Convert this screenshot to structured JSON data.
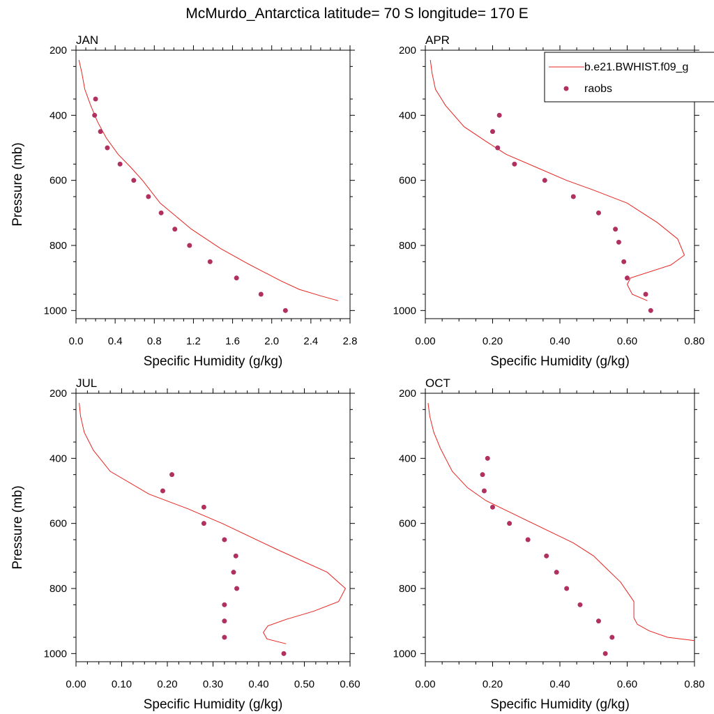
{
  "title": "McMurdo_Antarctica  latitude= 70 S longitude= 170 E",
  "colors": {
    "model": "#e8231f",
    "obs": "#b03060",
    "axis": "#000000"
  },
  "legend": {
    "model_label": "b.e21.BWHIST.f09_g",
    "obs_label": "raobs",
    "placement": "top-right of APR panel"
  },
  "chart_data": [
    {
      "type": "line",
      "panel_title": "JAN",
      "xlabel": "Specific Humidity (g/kg)",
      "ylabel": "Pressure (mb)",
      "xlim": [
        0,
        2.8
      ],
      "xticks": [
        "0.0",
        "0.4",
        "0.8",
        "1.2",
        "1.6",
        "2.0",
        "2.4",
        "2.8"
      ],
      "ylim": [
        200,
        1025
      ],
      "yticks": [
        "200",
        "400",
        "600",
        "800",
        "1000"
      ],
      "series": [
        {
          "kind": "line",
          "x": [
            0.03,
            0.06,
            0.09,
            0.15,
            0.22,
            0.31,
            0.43,
            0.56,
            0.68,
            0.86,
            1.18,
            1.48,
            1.78,
            2.1,
            2.28,
            2.5,
            2.68
          ],
          "y": [
            230,
            270,
            320,
            370,
            420,
            470,
            520,
            560,
            600,
            670,
            750,
            810,
            860,
            910,
            935,
            955,
            970
          ]
        },
        {
          "kind": "scatter",
          "x": [
            0.2,
            0.19,
            0.25,
            0.32,
            0.45,
            0.59,
            0.74,
            0.87,
            1.01,
            1.16,
            1.37,
            1.64,
            1.89,
            2.14
          ],
          "y": [
            350,
            400,
            450,
            500,
            550,
            600,
            650,
            700,
            750,
            800,
            850,
            900,
            950,
            1000
          ]
        }
      ]
    },
    {
      "type": "line",
      "panel_title": "APR",
      "xlabel": "Specific Humidity (g/kg)",
      "ylabel": "",
      "xlim": [
        0,
        0.8
      ],
      "xticks": [
        "0.00",
        "0.20",
        "0.40",
        "0.60",
        "0.80"
      ],
      "ylim": [
        200,
        1025
      ],
      "yticks": [
        "200",
        "400",
        "600",
        "800",
        "1000"
      ],
      "series": [
        {
          "kind": "line",
          "x": [
            0.015,
            0.02,
            0.03,
            0.06,
            0.115,
            0.18,
            0.24,
            0.33,
            0.42,
            0.5,
            0.6,
            0.69,
            0.75,
            0.77,
            0.73,
            0.61,
            0.6,
            0.615,
            0.66
          ],
          "y": [
            230,
            270,
            320,
            370,
            435,
            480,
            520,
            560,
            600,
            630,
            670,
            730,
            780,
            830,
            860,
            900,
            920,
            950,
            970
          ]
        },
        {
          "kind": "scatter",
          "x": [
            0.22,
            0.2,
            0.215,
            0.265,
            0.355,
            0.44,
            0.515,
            0.565,
            0.575,
            0.59,
            0.6,
            0.655,
            0.67
          ],
          "y": [
            400,
            450,
            500,
            550,
            600,
            650,
            700,
            750,
            790,
            850,
            900,
            950,
            1000
          ]
        }
      ]
    },
    {
      "type": "line",
      "panel_title": "JUL",
      "xlabel": "Specific Humidity (g/kg)",
      "ylabel": "Pressure (mb)",
      "xlim": [
        0,
        0.6
      ],
      "xticks": [
        "0.00",
        "0.10",
        "0.20",
        "0.30",
        "0.40",
        "0.50",
        "0.60"
      ],
      "ylim": [
        200,
        1025
      ],
      "yticks": [
        "200",
        "400",
        "600",
        "800",
        "1000"
      ],
      "series": [
        {
          "kind": "line",
          "x": [
            0.007,
            0.01,
            0.018,
            0.038,
            0.075,
            0.16,
            0.245,
            0.32,
            0.44,
            0.55,
            0.59,
            0.575,
            0.52,
            0.46,
            0.42,
            0.41,
            0.418,
            0.46
          ],
          "y": [
            230,
            270,
            320,
            375,
            440,
            510,
            555,
            600,
            680,
            750,
            800,
            840,
            870,
            895,
            915,
            935,
            955,
            970
          ]
        },
        {
          "kind": "scatter",
          "x": [
            0.21,
            0.19,
            0.28,
            0.28,
            0.325,
            0.35,
            0.345,
            0.352,
            0.325,
            0.325,
            0.325,
            0.455
          ],
          "y": [
            450,
            500,
            550,
            600,
            650,
            700,
            750,
            800,
            850,
            900,
            950,
            1000
          ]
        }
      ]
    },
    {
      "type": "line",
      "panel_title": "OCT",
      "xlabel": "Specific Humidity (g/kg)",
      "ylabel": "",
      "xlim": [
        0,
        0.8
      ],
      "xticks": [
        "0.00",
        "0.20",
        "0.40",
        "0.60",
        "0.80"
      ],
      "ylim": [
        200,
        1025
      ],
      "yticks": [
        "200",
        "400",
        "600",
        "800",
        "1000"
      ],
      "series": [
        {
          "kind": "line",
          "x": [
            0.008,
            0.013,
            0.025,
            0.045,
            0.08,
            0.125,
            0.18,
            0.26,
            0.32,
            0.38,
            0.44,
            0.5,
            0.54,
            0.58,
            0.6,
            0.62,
            0.62,
            0.63,
            0.665,
            0.72,
            0.8
          ],
          "y": [
            230,
            270,
            320,
            370,
            440,
            490,
            530,
            570,
            600,
            630,
            660,
            700,
            740,
            780,
            810,
            840,
            890,
            910,
            930,
            950,
            960
          ]
        },
        {
          "kind": "scatter",
          "x": [
            0.185,
            0.17,
            0.175,
            0.2,
            0.25,
            0.305,
            0.36,
            0.39,
            0.42,
            0.46,
            0.515,
            0.555,
            0.535
          ],
          "y": [
            400,
            450,
            500,
            550,
            600,
            650,
            700,
            750,
            800,
            850,
            900,
            950,
            1000
          ]
        }
      ]
    }
  ]
}
